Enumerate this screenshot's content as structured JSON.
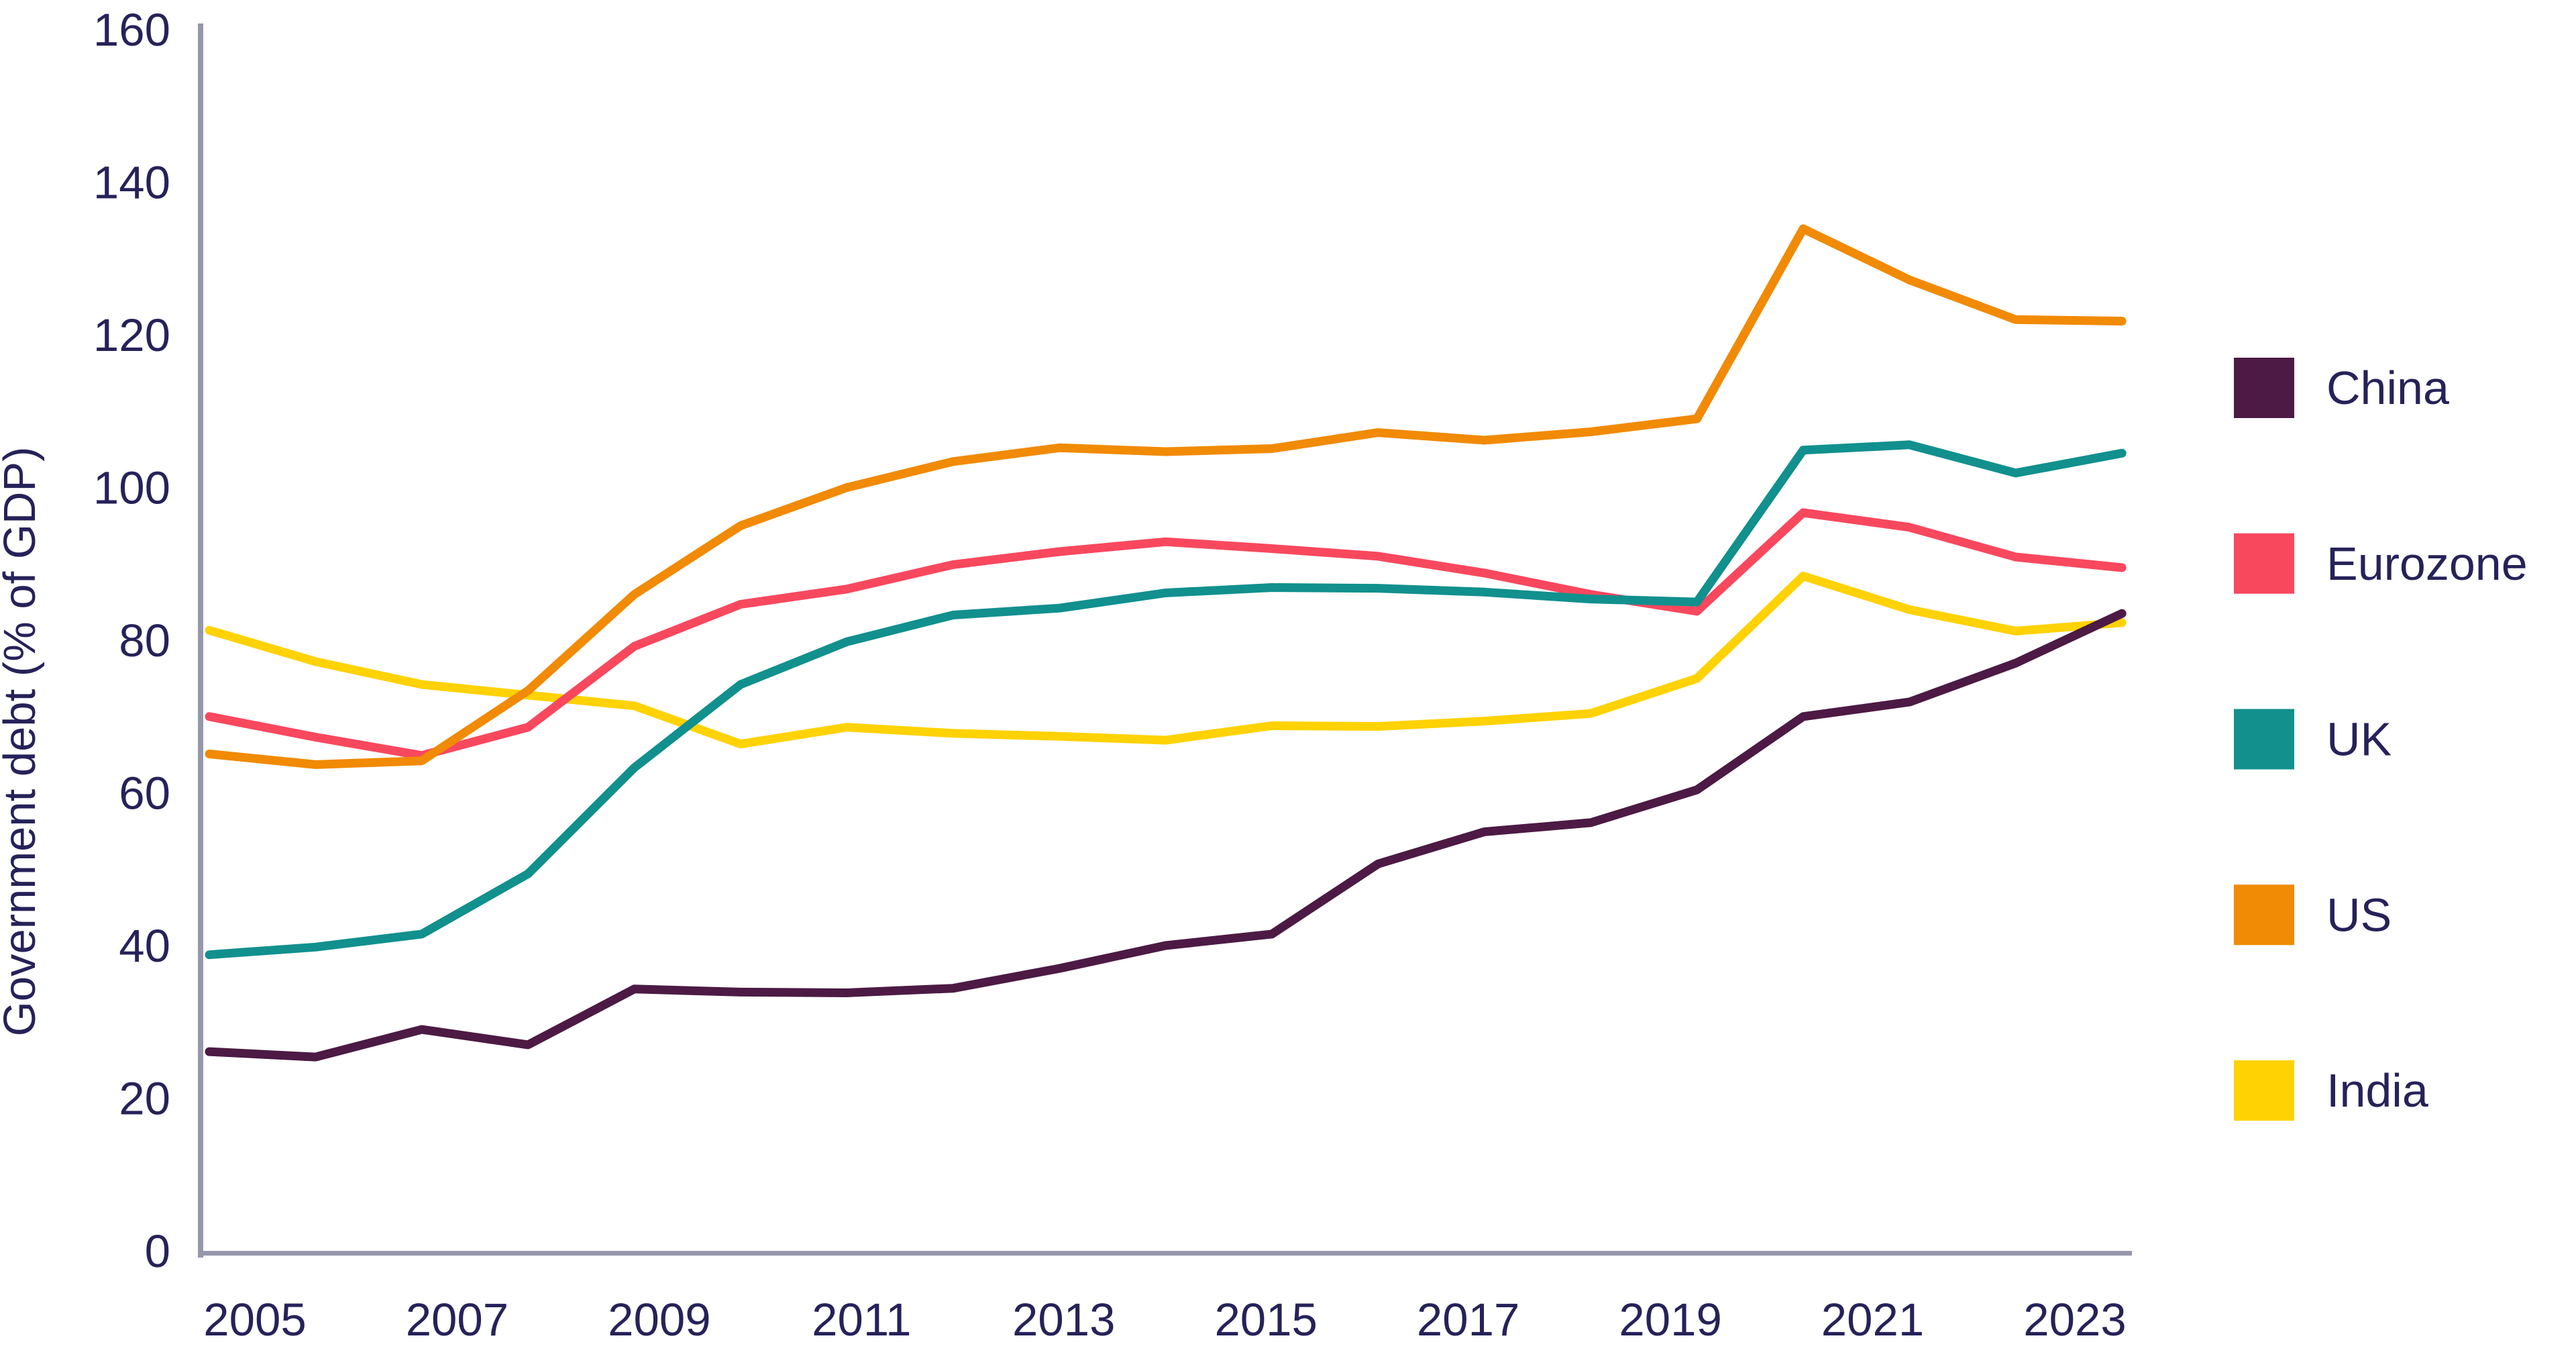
{
  "chart_data": {
    "type": "line",
    "title": "",
    "ylabel": "Government debt (% of GDP)",
    "x": [
      2005,
      2006,
      2007,
      2008,
      2009,
      2010,
      2011,
      2012,
      2013,
      2014,
      2015,
      2016,
      2017,
      2018,
      2019,
      2020,
      2021,
      2022,
      2023
    ],
    "xtick_labels": [
      "2005",
      "2007",
      "2009",
      "2011",
      "2013",
      "2015",
      "2017",
      "2019",
      "2021",
      "2023"
    ],
    "yticks": [
      0,
      20,
      40,
      60,
      80,
      100,
      120,
      140,
      160
    ],
    "ylim": [
      0,
      160
    ],
    "grid": false,
    "legend_position": "right",
    "series": [
      {
        "name": "China",
        "color": "#4C1A44",
        "values": [
          26.1,
          25.4,
          29.0,
          27.0,
          34.3,
          33.9,
          33.8,
          34.4,
          37.0,
          40.0,
          41.5,
          50.7,
          54.9,
          56.1,
          60.4,
          70.0,
          71.9,
          77.0,
          83.5
        ]
      },
      {
        "name": "Eurozone",
        "color": "#F8485E",
        "values": [
          70.0,
          67.3,
          64.9,
          68.6,
          79.2,
          84.7,
          86.7,
          89.9,
          91.6,
          92.9,
          92.0,
          91.0,
          88.8,
          86.0,
          83.8,
          96.7,
          94.8,
          90.9,
          89.5
        ]
      },
      {
        "name": "UK",
        "color": "#11908E",
        "values": [
          38.8,
          39.8,
          41.5,
          49.4,
          63.3,
          74.2,
          79.8,
          83.3,
          84.2,
          86.2,
          86.9,
          86.8,
          86.3,
          85.4,
          85.0,
          104.9,
          105.6,
          101.9,
          104.5
        ]
      },
      {
        "name": "US",
        "color": "#F18A04",
        "values": [
          65.1,
          63.7,
          64.2,
          73.4,
          86.0,
          95.0,
          100.0,
          103.4,
          105.2,
          104.7,
          105.1,
          107.2,
          106.2,
          107.3,
          109.0,
          133.9,
          127.2,
          122.0,
          121.8
        ]
      },
      {
        "name": "India",
        "color": "#FFD203",
        "values": [
          81.3,
          77.2,
          74.2,
          72.8,
          71.4,
          66.4,
          68.6,
          67.8,
          67.4,
          66.9,
          68.8,
          68.7,
          69.4,
          70.4,
          75.0,
          88.4,
          84.0,
          81.2,
          82.3
        ]
      }
    ],
    "colors": {
      "axis": "#9697AB",
      "text": "#262259",
      "background": "#FFFFFF"
    }
  }
}
